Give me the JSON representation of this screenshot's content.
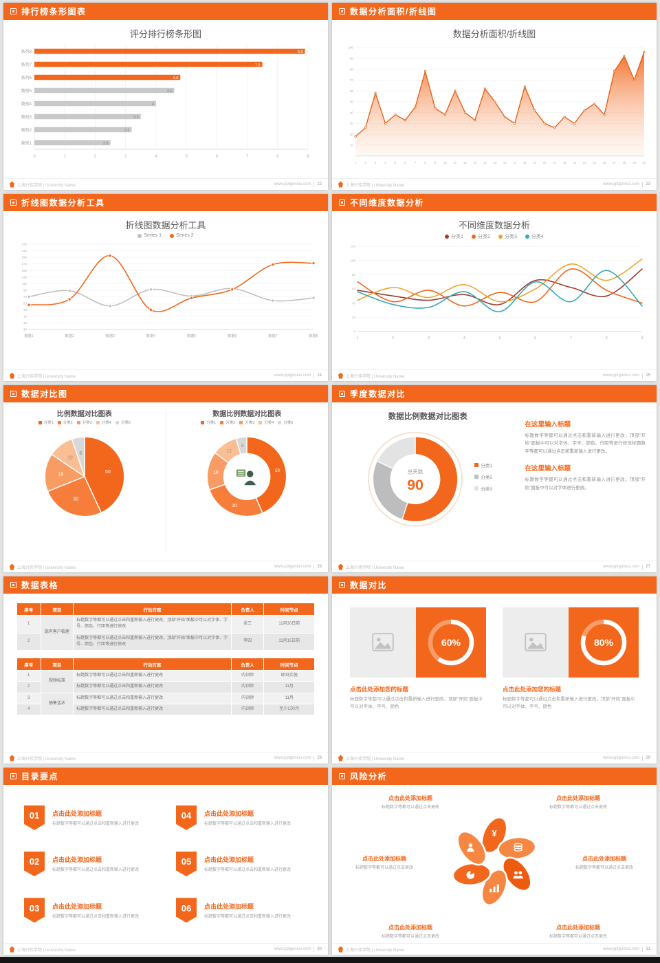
{
  "colors": {
    "accent": "#F2671C",
    "accent_dark": "#E85A0E",
    "gray_bar": "#C9C9C9",
    "page_bg": "#E4E4E4"
  },
  "footer": {
    "logo_text": "上海兴伟学院 | University Name",
    "site": "www.pptgunius.com"
  },
  "slides": {
    "s22": {
      "header": "排行榜条形图表",
      "page": "22",
      "title": "评分排行榜条形图"
    },
    "s23": {
      "header": "数据分析面积/折线图",
      "page": "23",
      "title": "数据分析面积/折线图"
    },
    "s24": {
      "header": "折线图数据分析工具",
      "page": "24",
      "title": "折线图数据分析工具",
      "legend": [
        {
          "label": "Series 1",
          "color": "#BFBFBF"
        },
        {
          "label": "Series 2",
          "color": "#F2671C"
        }
      ]
    },
    "s25": {
      "header": "不同维度数据分析",
      "page": "25",
      "title": "不同维度数据分析",
      "legend": [
        {
          "label": "分类1",
          "color": "#9C3D2E"
        },
        {
          "label": "分类2",
          "color": "#F2671C"
        },
        {
          "label": "分类3",
          "color": "#F0A32F"
        },
        {
          "label": "分类4",
          "color": "#35A8B4"
        }
      ]
    },
    "s26": {
      "header": "数据对比图",
      "page": "26",
      "left_title": "比例数据对比图表",
      "right_title": "数据比例数据对比图表",
      "legend": [
        {
          "label": "分类1",
          "color": "#F2671C"
        },
        {
          "label": "分类2",
          "color": "#F67E3A"
        },
        {
          "label": "分类3",
          "color": "#F99C63"
        },
        {
          "label": "分类4",
          "color": "#FBBE93"
        },
        {
          "label": "分类5",
          "color": "#D8D8D8"
        }
      ]
    },
    "s27": {
      "header": "季度数据对比",
      "page": "27",
      "title": "数据比例数据对比图表",
      "legend": [
        {
          "label": "分类1",
          "color": "#F2671C"
        },
        {
          "label": "分类2",
          "color": "#BDBDBD"
        },
        {
          "label": "分类3",
          "color": "#E3E3E3"
        }
      ],
      "sections": [
        {
          "heading": "在这里输入标题",
          "body": "标题数字等都可以通过点击和重新输入进行更改，顶部“开始”面板中可以对字体、字号、颜色、行距等进行修改标题数字等都可以通过点击和重新输入进行更改。"
        },
        {
          "heading": "在这里输入标题",
          "body": "标题数字等都可以通过点击和重新输入进行更改，顶部“开始”面板中可以对字体进行更改。"
        }
      ]
    },
    "s28": {
      "header": "数据表格",
      "page": "28",
      "table1": {
        "headers": [
          "序号",
          "项目",
          "行动方案",
          "负责人",
          "时间节点"
        ],
        "widths": [
          "8%",
          "11%",
          "53%",
          "11%",
          "17%"
        ],
        "rows": [
          [
            {
              "t": "1"
            },
            {
              "t": "现有客户梳理",
              "rs": 2,
              "cls": "proj"
            },
            {
              "t": "标题数字等都可以通过点击和重新输入进行更改，顶部“开始”面板中可以对字体、字号、颜色、行距等进行修改",
              "cls": "left"
            },
            {
              "t": "张三"
            },
            {
              "t": "11月30日前"
            }
          ],
          [
            {
              "t": "2"
            },
            {
              "t": "标题数字等都可以通过点击和重新输入进行更改，顶部“开始”面板中可以对字体、字号、颜色、行距等进行修改",
              "cls": "left"
            },
            {
              "t": "李四"
            },
            {
              "t": "11月15日前"
            }
          ]
        ]
      },
      "table2": {
        "headers": [
          "序号",
          "项目",
          "行动方案",
          "负责人",
          "时间节点"
        ],
        "widths": [
          "8%",
          "11%",
          "53%",
          "11%",
          "17%"
        ],
        "rows": [
          [
            {
              "t": "1"
            },
            {
              "t": "视频标准",
              "rs": 2,
              "cls": "proj"
            },
            {
              "t": "标题数字等都可以通过点击和重新输入进行更改",
              "cls": "left"
            },
            {
              "t": "内训师"
            },
            {
              "t": "即日实施"
            }
          ],
          [
            {
              "t": "2"
            },
            {
              "t": "标题数字等都可以通过点击和重新输入进行更改",
              "cls": "left"
            },
            {
              "t": "内训师"
            },
            {
              "t": "11月"
            }
          ],
          [
            {
              "t": "3"
            },
            {
              "t": "销售话术",
              "rs": 2,
              "cls": "proj"
            },
            {
              "t": "标题数字等都可以通过点击和重新输入进行更改",
              "cls": "left"
            },
            {
              "t": "内训师"
            },
            {
              "t": "11月"
            }
          ],
          [
            {
              "t": "4"
            },
            {
              "t": "标题数字等都可以通过点击和重新输入进行更改",
              "cls": "left"
            },
            {
              "t": "内训师"
            },
            {
              "t": "至少1次/月"
            }
          ]
        ]
      }
    },
    "s29": {
      "header": "数据对比",
      "page": "29",
      "cards": [
        {
          "percent_label": "60%",
          "icon": "image-placeholder-icon",
          "title": "点击此处添加您的标题",
          "desc": "标题数字等都可以通过点击和重新输入进行更改，顶部“开始”面板中可以对字体、字号、颜色"
        },
        {
          "percent_label": "80%",
          "icon": "image-placeholder-icon",
          "title": "点击此处添加您的标题",
          "desc": "标题数字等都可以通过点击和重新输入进行更改，顶部“开始”面板中可以对字体、字号、颜色"
        }
      ]
    },
    "s30": {
      "header": "目录要点",
      "page": "30",
      "items": [
        {
          "num": "01",
          "title": "点击此处添加标题",
          "desc": "标题数字等都可以通过点击和重新输入进行更改"
        },
        {
          "num": "02",
          "title": "点击此处添加标题",
          "desc": "标题数字等都可以通过点击和重新输入进行更改"
        },
        {
          "num": "03",
          "title": "点击此处添加标题",
          "desc": "标题数字等都可以通过点击和重新输入进行更改"
        },
        {
          "num": "04",
          "title": "点击此处添加标题",
          "desc": "标题数字等都可以通过点击和重新输入进行更改"
        },
        {
          "num": "05",
          "title": "点击此处添加标题",
          "desc": "标题数字等都可以通过点击和重新输入进行更改"
        },
        {
          "num": "06",
          "title": "点击此处添加标题",
          "desc": "标题数字等都可以通过点击和重新输入进行更改"
        }
      ]
    },
    "s31": {
      "header": "风险分析",
      "page": "31",
      "icons": [
        "yen-moneybag-icon",
        "coins-icon",
        "people-icon",
        "bar-chart-icon",
        "pie-chart-icon",
        "person-icon"
      ],
      "items": [
        {
          "title": "点击此处添加标题",
          "desc": "标题数字等都可以通过点击更改"
        },
        {
          "title": "点击此处添加标题",
          "desc": "标题数字等都可以通过点击更改"
        },
        {
          "title": "点击此处添加标题",
          "desc": "标题数字等都可以通过点击更改"
        },
        {
          "title": "点击此处添加标题",
          "desc": "标题数字等都可以通过点击更改"
        },
        {
          "title": "点击此处添加标题",
          "desc": "标题数字等都可以通过点击更改"
        },
        {
          "title": "点击此处添加标题",
          "desc": "标题数字等都可以通过点击更改"
        }
      ]
    }
  },
  "chart_data": [
    {
      "type": "bar",
      "orientation": "horizontal",
      "title": "评分排行榜条形图",
      "categories": [
        "系列8",
        "系列7",
        "系列6",
        "类别5",
        "类别4",
        "类别3",
        "类别2",
        "类别1"
      ],
      "values": [
        8.9,
        7.5,
        4.8,
        4.6,
        4,
        3.5,
        3.2,
        2.5
      ],
      "bar_colors": [
        "#F2671C",
        "#F2671C",
        "#F2671C",
        "#C9C9C9",
        "#C9C9C9",
        "#C9C9C9",
        "#C9C9C9",
        "#C9C9C9"
      ],
      "xlim": [
        0,
        9
      ],
      "xticks": [
        0,
        1,
        2,
        3,
        4,
        5,
        6,
        7,
        8,
        9
      ],
      "grid": true
    },
    {
      "type": "area",
      "title": "数据分析面积/折线图",
      "x": [
        1,
        2,
        3,
        4,
        5,
        6,
        7,
        8,
        9,
        10,
        11,
        12,
        13,
        14,
        15,
        16,
        17,
        18,
        19,
        20,
        21,
        22,
        23,
        24,
        25,
        26,
        27,
        28,
        29,
        30
      ],
      "values": [
        18,
        26,
        58,
        30,
        38,
        33,
        45,
        78,
        44,
        38,
        60,
        40,
        33,
        62,
        50,
        36,
        30,
        64,
        42,
        30,
        26,
        36,
        30,
        42,
        48,
        38,
        78,
        92,
        70,
        96
      ],
      "color": "#F2671C",
      "line_color": "#E85A0E",
      "ylim": [
        0,
        100
      ],
      "yticks": [
        10,
        20,
        30,
        40,
        50,
        60,
        70,
        80,
        90,
        100
      ],
      "grid": true
    },
    {
      "type": "line",
      "title": "折线图数据分析工具",
      "x_labels": [
        "数据1",
        "数据2",
        "数据3",
        "数据4",
        "数据5",
        "数据6",
        "数据7",
        "数据8"
      ],
      "ylim": [
        -30,
        230
      ],
      "yticks": [
        -30,
        -10,
        10,
        30,
        50,
        70,
        90,
        110,
        130,
        150,
        170,
        190,
        210,
        230
      ],
      "markers": true,
      "smooth": true,
      "series": [
        {
          "name": "Series 1",
          "color": "#BFBFBF",
          "values": [
            70,
            88,
            42,
            92,
            72,
            95,
            58,
            66
          ]
        },
        {
          "name": "Series 2",
          "color": "#F2671C",
          "values": [
            45,
            62,
            195,
            30,
            66,
            92,
            168,
            172
          ]
        }
      ]
    },
    {
      "type": "line",
      "title": "不同维度数据分析",
      "x_labels": [
        "1",
        "2",
        "3",
        "4",
        "5",
        "6",
        "7",
        "8",
        "9"
      ],
      "ylim": [
        0,
        120
      ],
      "yticks": [
        0,
        20,
        40,
        60,
        80,
        100,
        120
      ],
      "markers": false,
      "smooth": true,
      "series": [
        {
          "name": "分类1",
          "color": "#9C3D2E",
          "values": [
            58,
            50,
            44,
            52,
            38,
            72,
            62,
            50,
            88
          ]
        },
        {
          "name": "分类2",
          "color": "#F2671C",
          "values": [
            70,
            42,
            58,
            36,
            55,
            42,
            88,
            58,
            40
          ]
        },
        {
          "name": "分类3",
          "color": "#F0A32F",
          "values": [
            44,
            62,
            48,
            66,
            42,
            60,
            95,
            72,
            102
          ]
        },
        {
          "name": "分类4",
          "color": "#35A8B4",
          "values": [
            56,
            38,
            34,
            56,
            28,
            70,
            42,
            86,
            36
          ]
        }
      ]
    },
    {
      "type": "pie",
      "title": "比例数据对比图表",
      "labels": [
        "分类1",
        "分类2",
        "分类3",
        "分类4",
        "分类5"
      ],
      "values": [
        50,
        30,
        18,
        12,
        6
      ],
      "colors": [
        "#F2671C",
        "#F67E3A",
        "#F99C63",
        "#FBBE93",
        "#D8D8D8"
      ],
      "label_colors": [
        "#FFFFFF",
        "#FFFFFF",
        "#FFFFFF",
        "#8A8A8A",
        "#8A8A8A"
      ],
      "show_labels": true
    },
    {
      "type": "donut",
      "title": "数据比例数据对比图表",
      "labels": [
        "分类1",
        "分类2",
        "分类3",
        "分类4",
        "分类5"
      ],
      "values": [
        50,
        30,
        18,
        12,
        5
      ],
      "colors": [
        "#F2671C",
        "#F67E3A",
        "#F99C63",
        "#FBBE93",
        "#D8D8D8"
      ],
      "label_colors": [
        "#FFFFFF",
        "#FFFFFF",
        "#FFFFFF",
        "#8A8A8A",
        "#8A8A8A"
      ],
      "show_labels": true,
      "center_icon": "presenter-icon"
    },
    {
      "type": "donut",
      "title": "数据比例数据对比图表",
      "labels": [
        "分类1",
        "分类2",
        "分类3"
      ],
      "values": [
        55,
        27,
        18
      ],
      "colors": [
        "#F2671C",
        "#BDBDBD",
        "#E3E3E3"
      ],
      "label_colors": [],
      "show_labels": false,
      "halo": true,
      "center_label": "总天数",
      "center_value": "90"
    },
    {
      "type": "progress",
      "percent": 60,
      "label": "60%"
    },
    {
      "type": "progress",
      "percent": 80,
      "label": "80%"
    }
  ]
}
